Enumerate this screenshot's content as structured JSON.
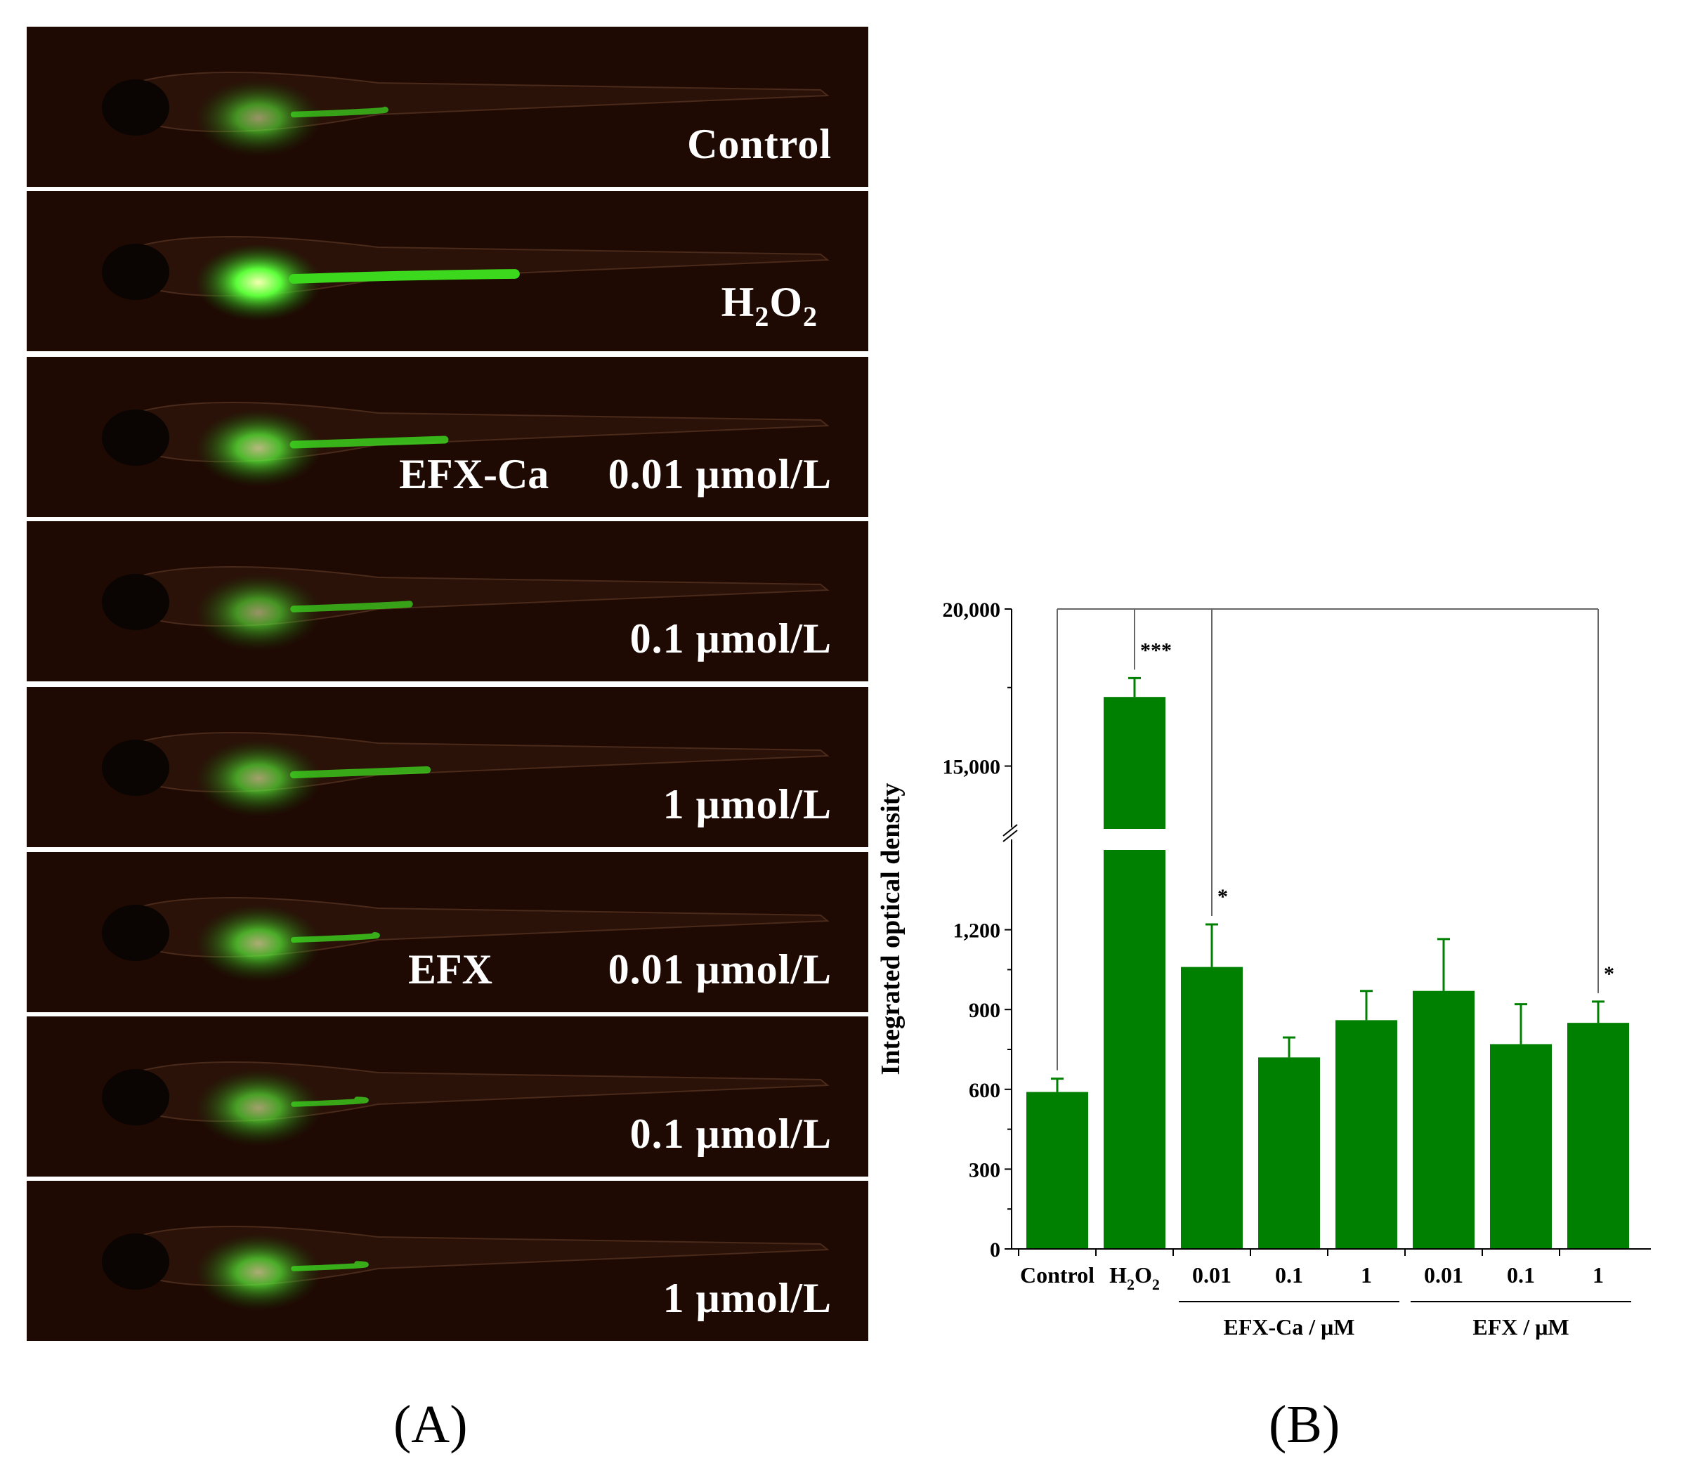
{
  "panel_a": {
    "letter": "(A)",
    "strips": [
      {
        "label": "Control",
        "prefix": "",
        "intensity": 0.55,
        "tail": 0.18
      },
      {
        "label": "H2O2",
        "prefix": "",
        "intensity": 1.0,
        "tail": 0.55
      },
      {
        "label": "0.01 μmol/L",
        "prefix": "EFX-Ca",
        "intensity": 0.7,
        "tail": 0.35
      },
      {
        "label": "0.1 μmol/L",
        "prefix": "",
        "intensity": 0.55,
        "tail": 0.25
      },
      {
        "label": "1 μmol/L",
        "prefix": "",
        "intensity": 0.6,
        "tail": 0.3
      },
      {
        "label": "0.01 μmol/L",
        "prefix": "EFX",
        "intensity": 0.65,
        "tail": 0.15
      },
      {
        "label": "0.1 μmol/L",
        "prefix": "",
        "intensity": 0.6,
        "tail": 0.1
      },
      {
        "label": "1 μmol/L",
        "prefix": "",
        "intensity": 0.65,
        "tail": 0.1
      }
    ],
    "h2o2_label": {
      "main": "H",
      "sub1": "2",
      "mid": "O",
      "sub2": "2"
    }
  },
  "panel_b": {
    "letter": "(B)"
  },
  "chart_data": {
    "type": "bar",
    "title": "",
    "xlabel": "",
    "ylabel": "Integrated optical density",
    "categories": [
      "Control",
      "H2O2",
      "0.01",
      "0.1",
      "1",
      "0.01",
      "0.1",
      "1"
    ],
    "values": [
      590,
      17200,
      1060,
      720,
      860,
      970,
      770,
      850
    ],
    "errors": [
      50,
      600,
      160,
      75,
      110,
      195,
      150,
      80
    ],
    "group_labels": [
      {
        "label": "EFX-Ca / μM",
        "from": 2,
        "to": 4
      },
      {
        "label": "EFX / μM",
        "from": 5,
        "to": 7
      }
    ],
    "axis_break": {
      "lower_range": [
        0,
        1500
      ],
      "upper_range": [
        13000,
        20000
      ]
    },
    "lower_ticks": [
      "0",
      "300",
      "600",
      "900",
      "1,200"
    ],
    "lower_tick_values": [
      0,
      300,
      600,
      900,
      1200
    ],
    "upper_ticks": [
      "15,000",
      "20,000"
    ],
    "upper_tick_values": [
      15000,
      20000
    ],
    "significance": [
      {
        "bar": 1,
        "mark": "***"
      },
      {
        "bar": 2,
        "mark": "*"
      },
      {
        "bar": 7,
        "mark": "*"
      }
    ],
    "bar_color": "#008000",
    "grid": false
  }
}
